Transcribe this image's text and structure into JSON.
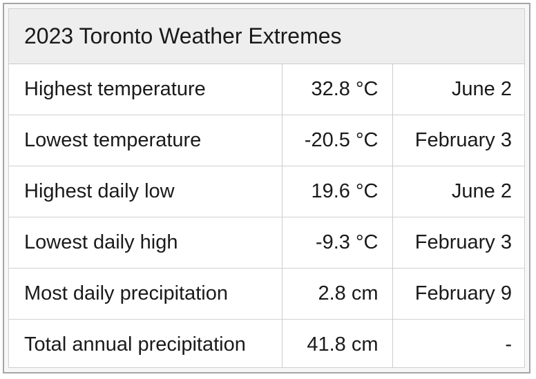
{
  "title": "2023 Toronto Weather Extremes",
  "rows": [
    {
      "label": "Highest temperature",
      "value": "32.8 °C",
      "date": "June 2"
    },
    {
      "label": "Lowest temperature",
      "value": "-20.5 °C",
      "date": "February 3"
    },
    {
      "label": "Highest daily low",
      "value": "19.6 °C",
      "date": "June 2"
    },
    {
      "label": "Lowest daily high",
      "value": "-9.3 °C",
      "date": "February 3"
    },
    {
      "label": "Most daily precipitation",
      "value": "2.8 cm",
      "date": "February 9"
    },
    {
      "label": "Total annual precipitation",
      "value": "41.8 cm",
      "date": "-"
    }
  ]
}
